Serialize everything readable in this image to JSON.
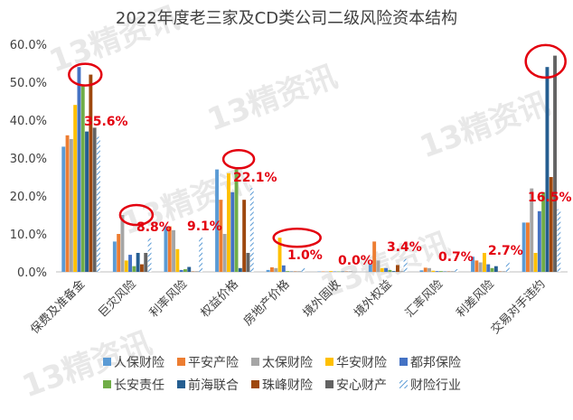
{
  "chart_data": {
    "type": "bar",
    "title": "2022年度老三家及CD类公司二级风险资本结构",
    "xlabel": "",
    "ylabel": "",
    "ylim": [
      0,
      0.6
    ],
    "y_tick_labels": [
      "0.0%",
      "10.0%",
      "20.0%",
      "30.0%",
      "40.0%",
      "50.0%",
      "60.0%"
    ],
    "grid": false,
    "legend_position": "bottom",
    "watermark": "13精资讯",
    "categories": [
      "保费及准备金",
      "巨灾风险",
      "利率风险",
      "权益价格",
      "房地产价格",
      "境外固收",
      "境外权益",
      "汇率风险",
      "利差风险",
      "交易对手违约"
    ],
    "series": [
      {
        "name": "人保财险",
        "color": "#5B9BD5",
        "values": [
          0.33,
          0.08,
          0.12,
          0.27,
          0.005,
          0.001,
          0.02,
          0.004,
          0.04,
          0.13
        ]
      },
      {
        "name": "平安产险",
        "color": "#ED7D31",
        "values": [
          0.36,
          0.1,
          0.12,
          0.19,
          0.012,
          0.001,
          0.08,
          0.011,
          0.03,
          0.13
        ]
      },
      {
        "name": "太保财险",
        "color": "#A5A5A5",
        "values": [
          0.35,
          0.15,
          0.11,
          0.1,
          0.01,
          0.001,
          0.03,
          0.01,
          0.025,
          0.22
        ]
      },
      {
        "name": "华安财险",
        "color": "#FFC000",
        "values": [
          0.44,
          0.03,
          0.06,
          0.26,
          0.09,
          0.002,
          0.01,
          0.003,
          0.05,
          0.05
        ]
      },
      {
        "name": "都邦保险",
        "color": "#4472C4",
        "values": [
          0.54,
          0.045,
          0.005,
          0.21,
          0.017,
          0.001,
          0.01,
          0.002,
          0.02,
          0.16
        ]
      },
      {
        "name": "长安责任",
        "color": "#70AD47",
        "values": [
          0.49,
          0.015,
          0.007,
          0.27,
          0.002,
          0.001,
          0.005,
          0.002,
          0.01,
          0.21
        ]
      },
      {
        "name": "前海联合",
        "color": "#255E91",
        "values": [
          0.37,
          0.05,
          0.013,
          0.01,
          0.001,
          0.001,
          0.002,
          0.001,
          0.015,
          0.54
        ]
      },
      {
        "name": "珠峰财险",
        "color": "#9E480E",
        "values": [
          0.52,
          0.02,
          0.001,
          0.19,
          0.001,
          0.001,
          0.018,
          0.001,
          0.001,
          0.25
        ]
      },
      {
        "name": "安心财产",
        "color": "#636363",
        "values": [
          0.38,
          0.05,
          0.001,
          0.05,
          0.001,
          0.001,
          0.001,
          0.001,
          0.001,
          0.57
        ]
      },
      {
        "name": "财险行业",
        "color": "#5B9BD5",
        "pattern": "diagonal-stripes",
        "values": [
          0.356,
          0.088,
          0.091,
          0.221,
          0.01,
          0.0,
          0.034,
          0.007,
          0.027,
          0.165
        ]
      }
    ],
    "industry_labels": [
      "35.6%",
      "8.8%",
      "9.1%",
      "22.1%",
      "1.0%",
      "0.0%",
      "3.4%",
      "0.7%",
      "2.7%",
      "16.5%"
    ],
    "label_color": "#E3000F",
    "highlight_color": "#E3000F",
    "highlights": [
      {
        "category": 0,
        "value": 0.52
      },
      {
        "category": 1,
        "value": 0.15
      },
      {
        "category": 3,
        "value": 0.285
      },
      {
        "category": 4,
        "value": 0.09
      },
      {
        "category": 9,
        "value": 0.555
      }
    ]
  }
}
